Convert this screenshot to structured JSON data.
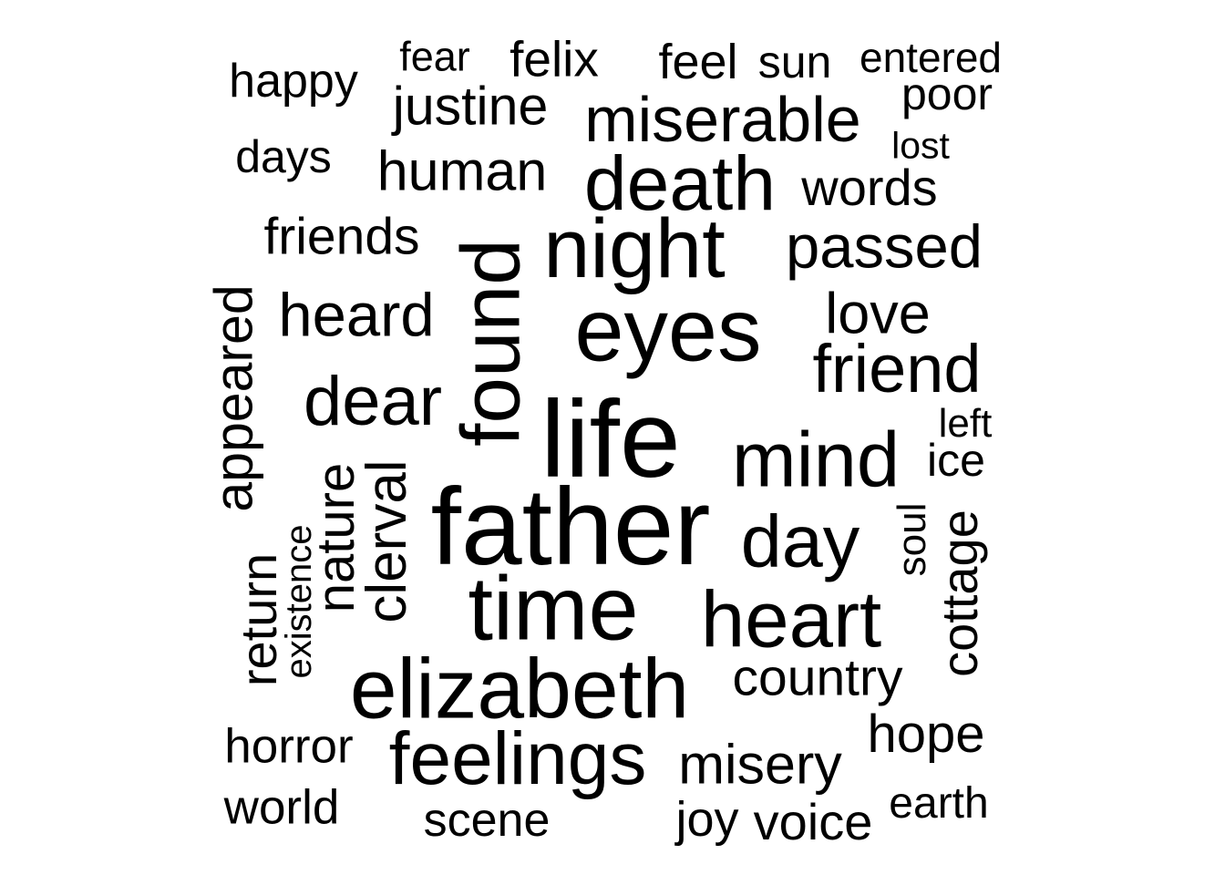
{
  "background": "#ffffff",
  "text_color": "#000000",
  "words": [
    "fear",
    "felix",
    "feel",
    "sun",
    "entered",
    "happy",
    "justine",
    "poor",
    "miserable",
    "lost",
    "days",
    "human",
    "death",
    "words",
    "friends",
    "night",
    "passed",
    "appeared",
    "found",
    "heard",
    "eyes",
    "love",
    "friend",
    "dear",
    "life",
    "left",
    "mind",
    "ice",
    "nature",
    "clerval",
    "father",
    "day",
    "soul",
    "cottage",
    "existence",
    "return",
    "time",
    "heart",
    "elizabeth",
    "country",
    "horror",
    "feelings",
    "hope",
    "misery",
    "world",
    "scene",
    "joy",
    "voice",
    "earth"
  ]
}
